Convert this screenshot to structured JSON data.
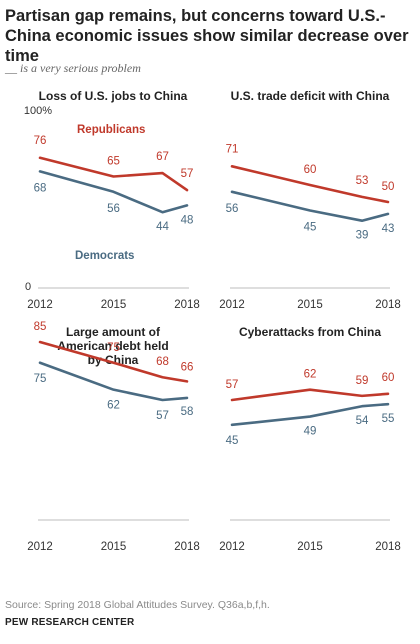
{
  "title": "Partisan gap remains, but concerns toward U.S.-China economic issues show similar decrease over time",
  "subtitle": "__ is a very serious problem",
  "source": "Source: Spring 2018 Global Attitudes Survey. Q36a,b,f,h.",
  "brand": "PEW RESEARCH CENTER",
  "colors": {
    "republicans": "#c0392b",
    "democrats": "#4a6b82",
    "axis": "#bdbdbd",
    "text": "#222222"
  },
  "chart_data": [
    {
      "type": "line",
      "title": "Loss of U.S. jobs to China",
      "x": [
        2012,
        2015,
        2017,
        2018
      ],
      "tick_labels": [
        "2012",
        "2015",
        "2018"
      ],
      "ylim": [
        0,
        100
      ],
      "y_tick_labels": [
        "0",
        "100%"
      ],
      "series": [
        {
          "name": "Republicans",
          "color": "#c0392b",
          "values": [
            76,
            65,
            67,
            57
          ]
        },
        {
          "name": "Democrats",
          "color": "#4a6b82",
          "values": [
            68,
            56,
            44,
            48
          ]
        }
      ]
    },
    {
      "type": "line",
      "title": "U.S. trade deficit with China",
      "x": [
        2012,
        2015,
        2017,
        2018
      ],
      "tick_labels": [
        "2012",
        "2015",
        "2018"
      ],
      "ylim": [
        0,
        100
      ],
      "series": [
        {
          "name": "Republicans",
          "color": "#c0392b",
          "values": [
            71,
            60,
            53,
            50
          ]
        },
        {
          "name": "Democrats",
          "color": "#4a6b82",
          "values": [
            56,
            45,
            39,
            43
          ]
        }
      ]
    },
    {
      "type": "line",
      "title": "Large amount of American debt held by China",
      "x": [
        2012,
        2015,
        2017,
        2018
      ],
      "tick_labels": [
        "2012",
        "2015",
        "2018"
      ],
      "ylim": [
        0,
        100
      ],
      "series": [
        {
          "name": "Republicans",
          "color": "#c0392b",
          "values": [
            85,
            75,
            68,
            66
          ]
        },
        {
          "name": "Democrats",
          "color": "#4a6b82",
          "values": [
            75,
            62,
            57,
            58
          ]
        }
      ]
    },
    {
      "type": "line",
      "title": "Cyberattacks from China",
      "x": [
        2012,
        2015,
        2017,
        2018
      ],
      "tick_labels": [
        "2012",
        "2015",
        "2018"
      ],
      "ylim": [
        0,
        100
      ],
      "series": [
        {
          "name": "Republicans",
          "color": "#c0392b",
          "values": [
            57,
            62,
            59,
            60
          ]
        },
        {
          "name": "Democrats",
          "color": "#4a6b82",
          "values": [
            45,
            49,
            54,
            55
          ]
        }
      ]
    }
  ]
}
